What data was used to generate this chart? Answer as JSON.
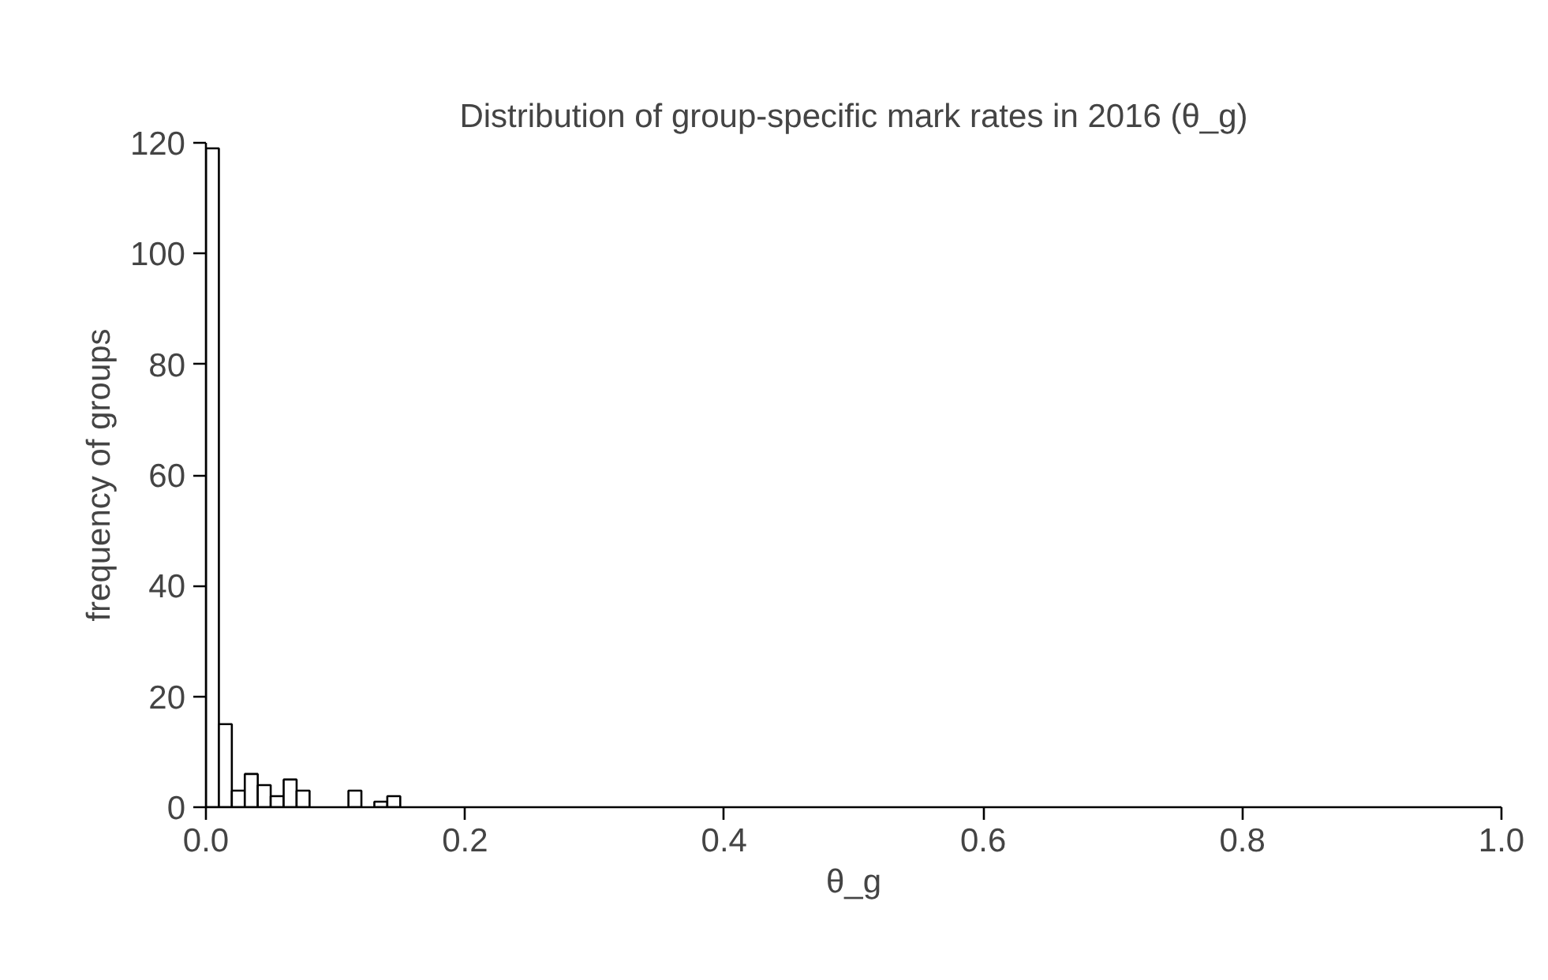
{
  "chart_data": {
    "type": "histogram",
    "title": "Distribution of group-specific mark rates in 2016 (θ_g)",
    "xlabel": "θ_g",
    "ylabel": "frequency of groups",
    "bins": [
      0,
      0.01,
      0.02,
      0.03,
      0.04,
      0.05,
      0.06,
      0.07,
      0.08,
      0.09,
      0.1,
      0.11,
      0.12,
      0.13,
      0.14,
      0.15
    ],
    "values": [
      119,
      15,
      3,
      6,
      4,
      2,
      5,
      3,
      0,
      0,
      0,
      3,
      0,
      1,
      2
    ],
    "color": "#ffffff",
    "xlim": [
      0,
      1
    ],
    "xticks": [
      {
        "value": 0,
        "label": "0.0"
      },
      {
        "value": 0.2,
        "label": "0.2"
      },
      {
        "value": 0.4,
        "label": "0.4"
      },
      {
        "value": 0.6,
        "label": "0.6"
      },
      {
        "value": 0.8,
        "label": "0.8"
      },
      {
        "value": 1,
        "label": "1.0"
      }
    ],
    "ylim": [
      0,
      120
    ],
    "yticks": [
      0,
      20,
      40,
      60,
      80,
      100,
      120
    ],
    "grid": false
  }
}
